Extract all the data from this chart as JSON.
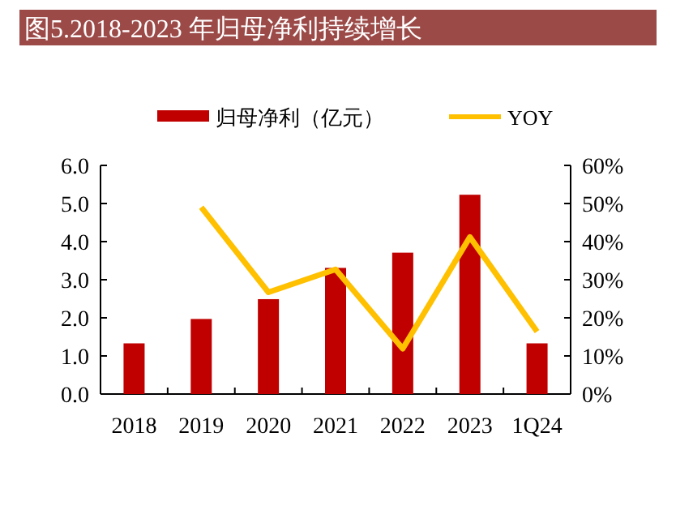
{
  "chart_data": {
    "type": "bar",
    "title": "图5.2018-2023 年归母净利持续增长",
    "categories": [
      "2018",
      "2019",
      "2020",
      "2021",
      "2022",
      "2023",
      "1Q24"
    ],
    "series": [
      {
        "name": "归母净利（亿元）",
        "color": "#c00000",
        "values": [
          1.33,
          1.97,
          2.49,
          3.31,
          3.71,
          5.23,
          1.33
        ]
      },
      {
        "name": "YOY",
        "type": "line",
        "axis": "y2",
        "color": "#ffc000",
        "values": [
          null,
          49,
          26.7,
          32.7,
          11.9,
          41.2,
          16.4
        ]
      }
    ],
    "ylim": [
      0,
      6
    ],
    "yticks": [
      {
        "value": 0,
        "label": "0.0"
      },
      {
        "value": 1,
        "label": "1.0"
      },
      {
        "value": 2,
        "label": "2.0"
      },
      {
        "value": 3,
        "label": "3.0"
      },
      {
        "value": 4,
        "label": "4.0"
      },
      {
        "value": 5,
        "label": "5.0"
      },
      {
        "value": 6,
        "label": "6.0"
      }
    ],
    "y2lim": [
      0,
      60
    ],
    "y2ticks": [
      {
        "value": 0,
        "label": "0%"
      },
      {
        "value": 10,
        "label": "10%"
      },
      {
        "value": 20,
        "label": "20%"
      },
      {
        "value": 30,
        "label": "30%"
      },
      {
        "value": 40,
        "label": "40%"
      },
      {
        "value": 50,
        "label": "50%"
      },
      {
        "value": 60,
        "label": "60%"
      }
    ],
    "legend": "top",
    "grid": false
  }
}
